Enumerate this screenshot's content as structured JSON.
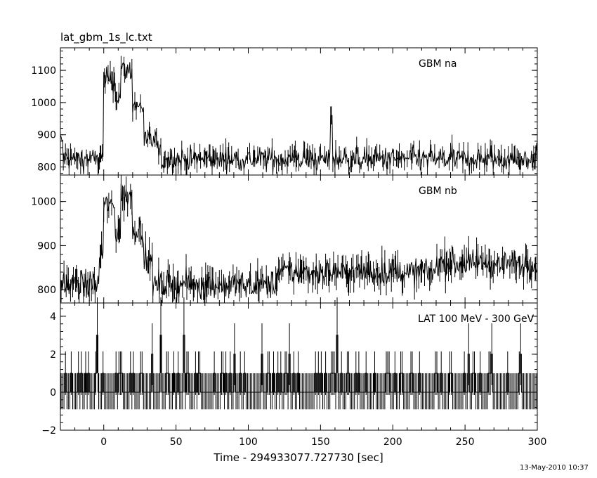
{
  "title": "lat_gbm_1s_lc.txt",
  "timestamp": "13-May-2010 10:37",
  "chart_data": {
    "type": "line",
    "title": "lat_gbm_1s_lc.txt",
    "xlabel": "Time - 294933077.727730 [sec]",
    "xlim": [
      -30,
      300
    ],
    "x_ticks": [
      0,
      50,
      100,
      150,
      200,
      250,
      300
    ],
    "panels": [
      {
        "name": "GBM na",
        "ylim": [
          775,
          1170
        ],
        "y_ticks": [
          800,
          900,
          1000,
          1100
        ],
        "baseline": 825,
        "noise": 26,
        "features": [
          {
            "x": [
              -30,
              -28
            ],
            "level": 880
          },
          {
            "x": [
              0,
              8
            ],
            "level": 1070
          },
          {
            "x": [
              8,
              12
            ],
            "level": 1020
          },
          {
            "x": [
              12,
              20
            ],
            "level": 1100
          },
          {
            "x": [
              20,
              28
            ],
            "level": 990
          },
          {
            "x": [
              28,
              38
            ],
            "level": 880
          }
        ],
        "spikes": [
          {
            "x": 157.5,
            "value": 960
          }
        ]
      },
      {
        "name": "GBM nb",
        "ylim": [
          770,
          1060
        ],
        "y_ticks": [
          800,
          900,
          1000
        ],
        "baseline": 812,
        "noise": 22,
        "features": [
          {
            "x": [
              -3,
              0
            ],
            "level": 880
          },
          {
            "x": [
              0,
              8
            ],
            "level": 990
          },
          {
            "x": [
              8,
              12
            ],
            "level": 930
          },
          {
            "x": [
              12,
              20
            ],
            "level": 1010
          },
          {
            "x": [
              20,
              28
            ],
            "level": 940
          },
          {
            "x": [
              28,
              34
            ],
            "level": 860
          },
          {
            "x": [
              120,
              300
            ],
            "level": 840
          },
          {
            "x": [
              230,
              300
            ],
            "level": 860
          }
        ],
        "spikes": []
      },
      {
        "name": "LAT 100 MeV - 300 GeV",
        "ylim": [
          -2,
          4.7
        ],
        "y_ticks": [
          -2,
          0,
          2,
          4
        ],
        "lat_events": [
          {
            "x": -5,
            "count": 3
          },
          {
            "x": 39,
            "count": 3
          },
          {
            "x": 55,
            "count": 3
          },
          {
            "x": 161,
            "count": 3
          },
          {
            "x": 33,
            "count": 2
          },
          {
            "x": 90,
            "count": 2
          },
          {
            "x": 109,
            "count": 2
          },
          {
            "x": 128,
            "count": 2
          },
          {
            "x": 252,
            "count": 2
          },
          {
            "x": 268,
            "count": 2
          },
          {
            "x": 288,
            "count": 2
          }
        ]
      }
    ]
  }
}
